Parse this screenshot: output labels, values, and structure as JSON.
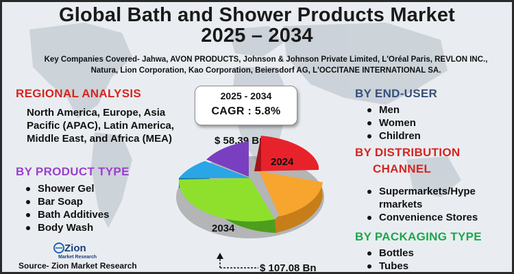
{
  "title": {
    "line1": "Global Bath and Shower Products Market",
    "line2": "2025 – 2034"
  },
  "companies": {
    "line1": "Key Companies Covered- Jahwa, AVON PRODUCTS, Johnson & Johnson Private Limited, L'Oréal Paris, REVLON INC.,",
    "line2": "Natura, Lion Corporation, Kao Corporation, Beiersdorf AG, L'OCCITANE INTERNATIONAL SA."
  },
  "regional": {
    "heading": "REGIONAL ANALYSIS",
    "text": "North America, Europe, Asia Pacific (APAC), Latin America, Middle East, and Africa (MEA)"
  },
  "product_type": {
    "heading": "BY PRODUCT TYPE",
    "items": [
      "Shower Gel",
      "Bar Soap",
      "Bath Additives",
      "Body Wash"
    ]
  },
  "cagr": {
    "years": "2025 - 2034",
    "value": "CAGR : 5.8%"
  },
  "market_values": {
    "start_value": "$ 58.39 Bn",
    "start_year": "2024",
    "end_value": "$ 107.08 Bn",
    "end_year": "2034"
  },
  "end_user": {
    "heading": "BY END-USER",
    "items": [
      "Men",
      "Women",
      "Children"
    ]
  },
  "distribution": {
    "heading_line1": "BY DISTRIBUTION",
    "heading_line2": "CHANNEL",
    "items": [
      "Supermarkets/Hype",
      "rmarkets",
      "Convenience Stores"
    ]
  },
  "packaging": {
    "heading": "BY PACKAGING TYPE",
    "items": [
      "Bottles",
      "Tubes"
    ]
  },
  "logo": {
    "top": "Zion",
    "bottom": "Market Research"
  },
  "source": "Source- Zion Market Research",
  "colors": {
    "red": "#d7241e",
    "purple": "#9b3fcf",
    "navy": "#35507a",
    "green": "#1aa84b",
    "pie_red": "#e8222b",
    "pie_orange": "#f7a52e",
    "pie_lime": "#8fe02c",
    "pie_blue": "#2aa5e6",
    "pie_purple": "#7a3fc0"
  }
}
